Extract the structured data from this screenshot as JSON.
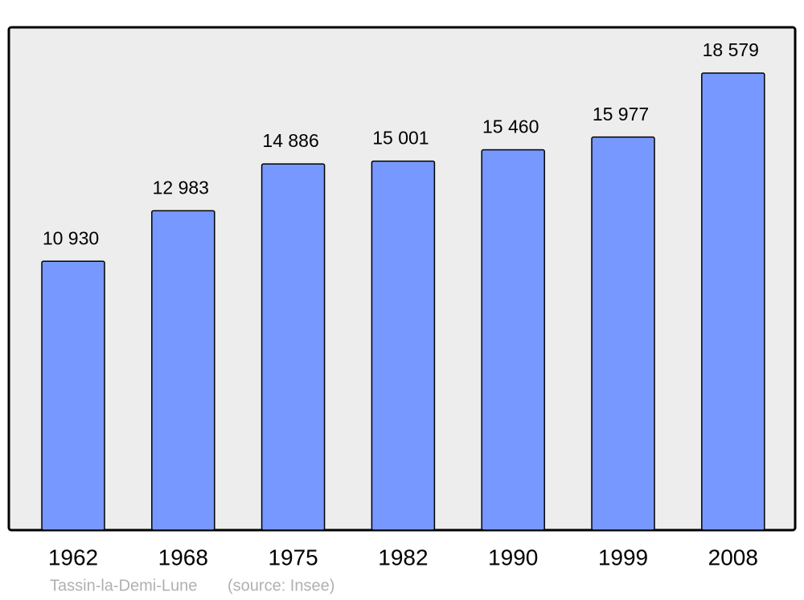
{
  "chart_data": {
    "type": "bar",
    "title": "Tassin-la-Demi-Lune",
    "source": "(source: Insee)",
    "categories": [
      "1962",
      "1968",
      "1975",
      "1982",
      "1990",
      "1999",
      "2008"
    ],
    "values": [
      10930,
      12983,
      14886,
      15001,
      15460,
      15977,
      18579
    ],
    "value_labels": [
      "10 930",
      "12 983",
      "14 886",
      "15 001",
      "15 460",
      "15 977",
      "18 579"
    ],
    "color": "#7799ff",
    "ylim": [
      0,
      20440
    ],
    "grid": false
  }
}
